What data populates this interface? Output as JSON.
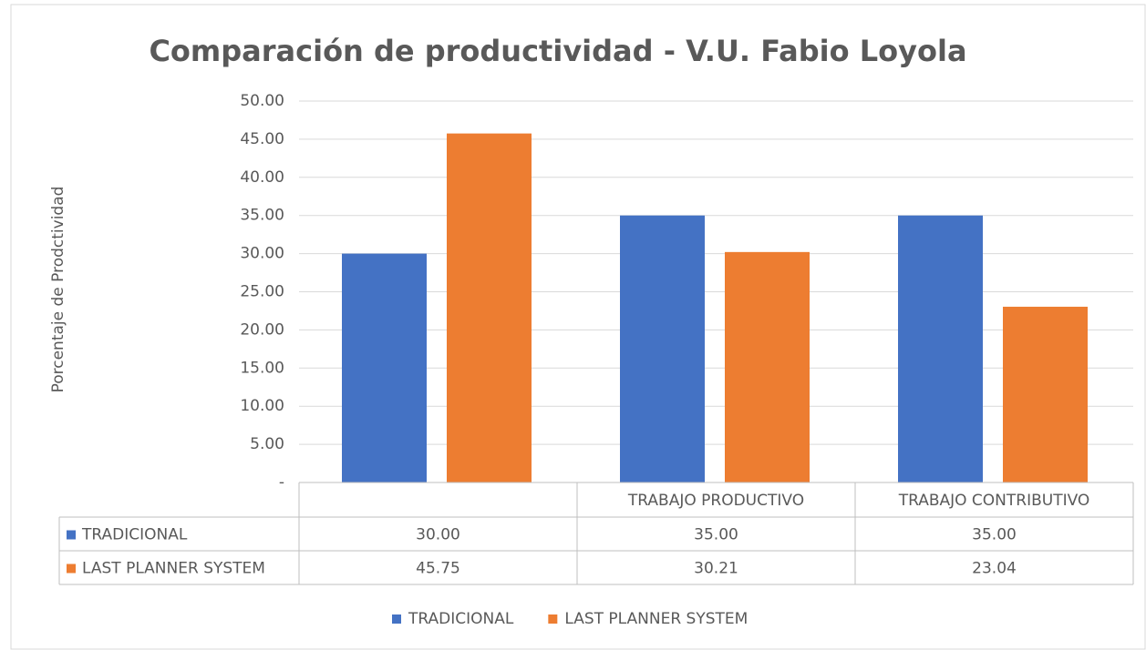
{
  "chart_data": {
    "type": "bar",
    "title": "Comparación de productividad - V.U. Fabio Loyola",
    "y_label": "Porcentaje de Prodctividad",
    "categories": [
      null,
      "TRABAJO PRODUCTIVO",
      "TRABAJO CONTRIBUTIVO"
    ],
    "series": [
      {
        "name": "TRADICIONAL",
        "color": "#4472c4",
        "values": [
          30,
          35,
          35
        ],
        "value_labels": [
          "30.00",
          "35.00",
          "35.00"
        ]
      },
      {
        "name": "LAST PLANNER SYSTEM",
        "color": "#ed7d31",
        "values": [
          45.75,
          30.21,
          23.04
        ],
        "value_labels": [
          "45.75",
          "30.21",
          "23.04"
        ]
      }
    ],
    "ylim": [
      0,
      50
    ],
    "yticks": [
      {
        "value": 0,
        "label": "-"
      },
      {
        "value": 5,
        "label": "5.00"
      },
      {
        "value": 10,
        "label": "10.00"
      },
      {
        "value": 15,
        "label": "15.00"
      },
      {
        "value": 20,
        "label": "20.00"
      },
      {
        "value": 25,
        "label": "25.00"
      },
      {
        "value": 30,
        "label": "30.00"
      },
      {
        "value": 35,
        "label": "35.00"
      },
      {
        "value": 40,
        "label": "40.00"
      },
      {
        "value": 45,
        "label": "45.00"
      },
      {
        "value": 50,
        "label": "50.00"
      }
    ],
    "grid": true,
    "legend": "bottom"
  }
}
